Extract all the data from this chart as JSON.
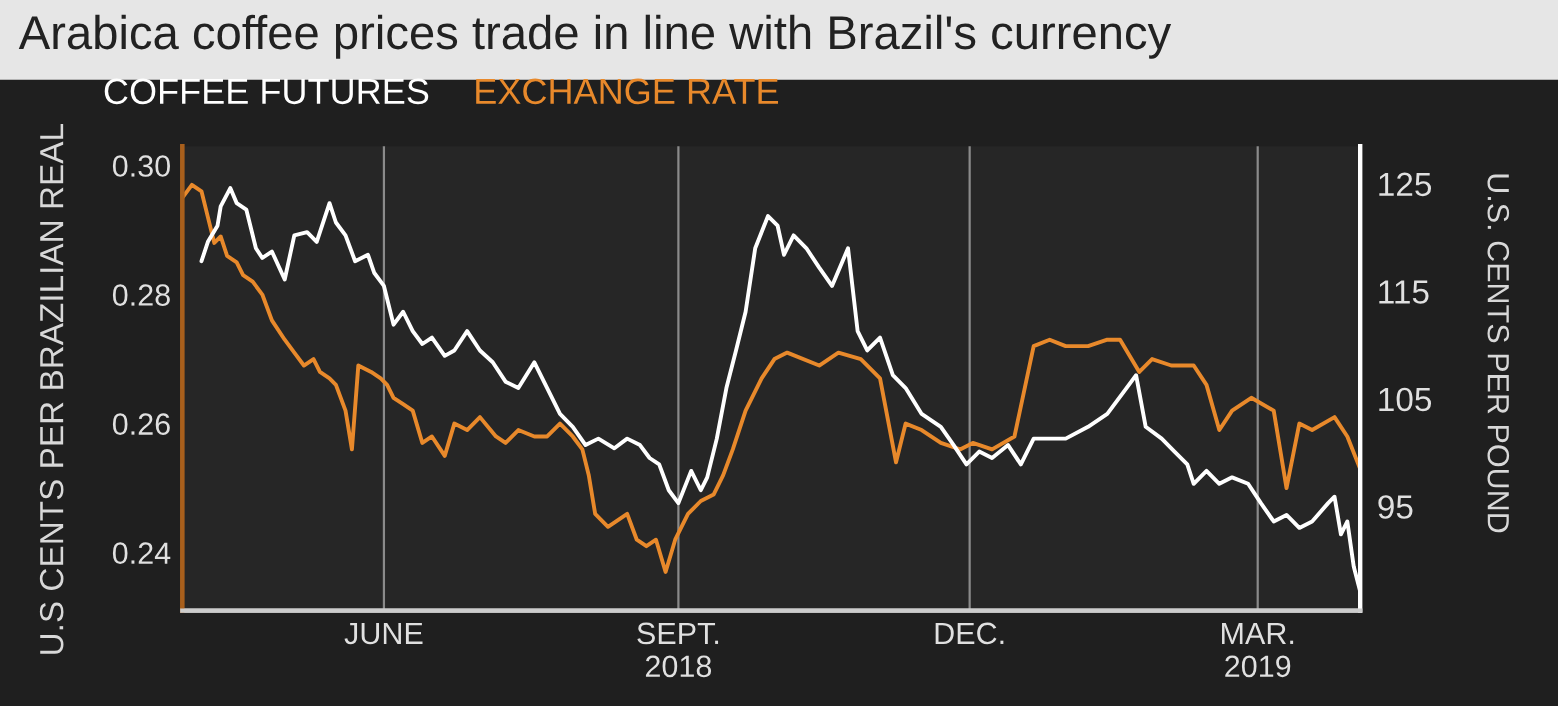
{
  "chart_data": {
    "type": "line",
    "title": "Arabica coffee prices trade in line with Brazil's currency",
    "ylabel": "U.S CENTS PER BRAZILIAN REAL",
    "y2label": "U.S. CENTS PER POUND",
    "xlim": [
      "2018-03-30",
      "2019-04-02"
    ],
    "xticks": [
      {
        "value": "2018-06-01",
        "label": "JUNE"
      },
      {
        "value": "2018-09-01",
        "label": "SEPT.\n2018"
      },
      {
        "value": "2018-12-01",
        "label": "DEC."
      },
      {
        "value": "2019-03-01",
        "label": "MAR.\n2019"
      }
    ],
    "ylim": [
      0.231,
      0.303
    ],
    "yticks": [
      {
        "value": 0.24,
        "label": "0.24"
      },
      {
        "value": 0.26,
        "label": "0.26"
      },
      {
        "value": 0.28,
        "label": "0.28"
      },
      {
        "value": 0.3,
        "label": "0.30"
      }
    ],
    "y2lim": [
      85.3,
      128.5
    ],
    "y2ticks": [
      95,
      105,
      115,
      125
    ],
    "grid": "x",
    "legend": "top left",
    "marker": "none",
    "line_style": "solid",
    "series": [
      {
        "name": "COFFEE FUTURES",
        "color": "#ffffff",
        "axis": "y2",
        "x": [
          "2018-04-05",
          "2018-04-07",
          "2018-04-10",
          "2018-04-11",
          "2018-04-14",
          "2018-04-16",
          "2018-04-19",
          "2018-04-22",
          "2018-04-24",
          "2018-04-27",
          "2018-05-01",
          "2018-05-04",
          "2018-05-08",
          "2018-05-11",
          "2018-05-15",
          "2018-05-17",
          "2018-05-20",
          "2018-05-23",
          "2018-05-27",
          "2018-05-29",
          "2018-06-01",
          "2018-06-04",
          "2018-06-07",
          "2018-06-10",
          "2018-06-13",
          "2018-06-16",
          "2018-06-20",
          "2018-06-23",
          "2018-06-27",
          "2018-07-01",
          "2018-07-05",
          "2018-07-09",
          "2018-07-13",
          "2018-07-18",
          "2018-07-22",
          "2018-07-26",
          "2018-07-30",
          "2018-08-03",
          "2018-08-07",
          "2018-08-12",
          "2018-08-16",
          "2018-08-20",
          "2018-08-23",
          "2018-08-26",
          "2018-08-29",
          "2018-09-01",
          "2018-09-05",
          "2018-09-08",
          "2018-09-10",
          "2018-09-13",
          "2018-09-16",
          "2018-09-19",
          "2018-09-22",
          "2018-09-25",
          "2018-09-29",
          "2018-10-02",
          "2018-10-04",
          "2018-10-07",
          "2018-10-11",
          "2018-10-15",
          "2018-10-19",
          "2018-10-24",
          "2018-10-27",
          "2018-10-30",
          "2018-11-03",
          "2018-11-07",
          "2018-11-11",
          "2018-11-16",
          "2018-11-22",
          "2018-11-26",
          "2018-11-30",
          "2018-12-04",
          "2018-12-08",
          "2018-12-13",
          "2018-12-17",
          "2018-12-21",
          "2018-12-25",
          "2018-12-31",
          "2019-01-07",
          "2019-01-13",
          "2019-01-19",
          "2019-01-22",
          "2019-01-25",
          "2019-01-30",
          "2019-02-03",
          "2019-02-07",
          "2019-02-09",
          "2019-02-13",
          "2019-02-17",
          "2019-02-21",
          "2019-02-26",
          "2019-03-02",
          "2019-03-06",
          "2019-03-10",
          "2019-03-14",
          "2019-03-18",
          "2019-03-23",
          "2019-03-25",
          "2019-03-27",
          "2019-03-29",
          "2019-03-31",
          "2019-04-02"
        ],
        "values": [
          117.8,
          119.6,
          121.1,
          122.9,
          124.6,
          123.2,
          122.6,
          119.0,
          118.1,
          118.7,
          116.1,
          120.2,
          120.5,
          119.6,
          123.2,
          121.4,
          120.2,
          117.8,
          118.4,
          116.7,
          115.5,
          111.9,
          113.1,
          111.3,
          110.1,
          110.7,
          109.0,
          109.5,
          111.3,
          109.5,
          108.4,
          106.6,
          106.0,
          108.4,
          106.0,
          103.6,
          102.4,
          100.7,
          101.3,
          100.4,
          101.3,
          100.7,
          99.5,
          98.9,
          96.5,
          95.3,
          98.3,
          96.5,
          97.7,
          101.3,
          106.0,
          109.5,
          113.1,
          119.0,
          122.0,
          121.1,
          118.4,
          120.2,
          119.0,
          117.2,
          115.5,
          119.0,
          111.3,
          109.5,
          110.7,
          107.2,
          106.0,
          103.6,
          102.4,
          100.7,
          98.9,
          100.1,
          99.5,
          100.7,
          98.9,
          101.3,
          101.3,
          101.3,
          102.4,
          103.6,
          106.0,
          107.2,
          102.4,
          101.3,
          100.1,
          98.9,
          97.1,
          98.3,
          97.1,
          97.7,
          97.1,
          95.3,
          93.6,
          94.2,
          93.0,
          93.6,
          95.3,
          95.9,
          92.4,
          93.6,
          89.4,
          87.1
        ]
      },
      {
        "name": "EXCHANGE RATE",
        "color": "#e8892b",
        "axis": "y",
        "x": [
          "2018-03-30",
          "2018-04-02",
          "2018-04-05",
          "2018-04-07",
          "2018-04-09",
          "2018-04-11",
          "2018-04-13",
          "2018-04-16",
          "2018-04-18",
          "2018-04-21",
          "2018-04-24",
          "2018-04-27",
          "2018-05-01",
          "2018-05-04",
          "2018-05-07",
          "2018-05-10",
          "2018-05-12",
          "2018-05-15",
          "2018-05-17",
          "2018-05-20",
          "2018-05-22",
          "2018-05-24",
          "2018-05-28",
          "2018-05-31",
          "2018-06-02",
          "2018-06-04",
          "2018-06-07",
          "2018-06-10",
          "2018-06-13",
          "2018-06-16",
          "2018-06-20",
          "2018-06-23",
          "2018-06-27",
          "2018-07-01",
          "2018-07-06",
          "2018-07-09",
          "2018-07-13",
          "2018-07-18",
          "2018-07-22",
          "2018-07-26",
          "2018-07-30",
          "2018-08-02",
          "2018-08-04",
          "2018-08-06",
          "2018-08-10",
          "2018-08-13",
          "2018-08-16",
          "2018-08-19",
          "2018-08-22",
          "2018-08-25",
          "2018-08-28",
          "2018-08-31",
          "2018-09-04",
          "2018-09-08",
          "2018-09-12",
          "2018-09-15",
          "2018-09-18",
          "2018-09-22",
          "2018-09-27",
          "2018-10-01",
          "2018-10-05",
          "2018-10-15",
          "2018-10-21",
          "2018-10-28",
          "2018-11-03",
          "2018-11-08",
          "2018-11-11",
          "2018-11-16",
          "2018-11-22",
          "2018-11-28",
          "2018-12-02",
          "2018-12-08",
          "2018-12-15",
          "2018-12-21",
          "2018-12-26",
          "2018-12-31",
          "2019-01-07",
          "2019-01-13",
          "2019-01-17",
          "2019-01-23",
          "2019-01-27",
          "2019-02-02",
          "2019-02-09",
          "2019-02-13",
          "2019-02-17",
          "2019-02-21",
          "2019-02-27",
          "2019-03-06",
          "2019-03-10",
          "2019-03-14",
          "2019-03-18",
          "2019-03-25",
          "2019-03-29",
          "2019-04-02"
        ],
        "values": [
          0.295,
          0.297,
          0.296,
          0.292,
          0.288,
          0.289,
          0.286,
          0.285,
          0.283,
          0.282,
          0.28,
          0.276,
          0.273,
          0.271,
          0.269,
          0.27,
          0.268,
          0.267,
          0.266,
          0.262,
          0.256,
          0.269,
          0.268,
          0.267,
          0.266,
          0.264,
          0.263,
          0.262,
          0.257,
          0.258,
          0.255,
          0.26,
          0.259,
          0.261,
          0.258,
          0.257,
          0.259,
          0.258,
          0.258,
          0.26,
          0.258,
          0.256,
          0.252,
          0.246,
          0.244,
          0.245,
          0.246,
          0.242,
          0.241,
          0.242,
          0.237,
          0.242,
          0.246,
          0.248,
          0.249,
          0.252,
          0.256,
          0.262,
          0.267,
          0.27,
          0.271,
          0.269,
          0.271,
          0.27,
          0.267,
          0.254,
          0.26,
          0.259,
          0.257,
          0.256,
          0.257,
          0.256,
          0.258,
          0.272,
          0.273,
          0.272,
          0.272,
          0.273,
          0.273,
          0.268,
          0.27,
          0.269,
          0.269,
          0.266,
          0.259,
          0.262,
          0.264,
          0.262,
          0.25,
          0.26,
          0.259,
          0.261,
          0.258,
          0.253
        ]
      }
    ]
  }
}
